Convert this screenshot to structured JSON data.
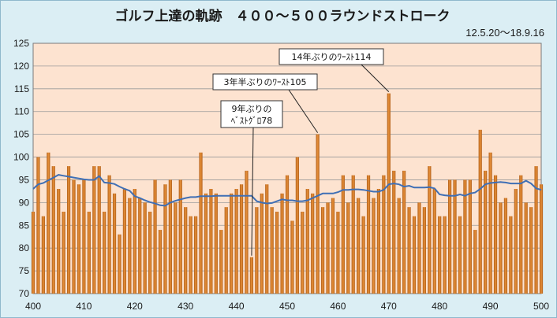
{
  "chart_data": {
    "type": "bar",
    "title": "ゴルフ上達の軌跡　４００～５００ラウンドストローク",
    "subtitle": "12.5.20～18.9.16",
    "x_start": 400,
    "x_ticks": [
      400,
      410,
      420,
      430,
      440,
      450,
      460,
      470,
      480,
      490,
      500
    ],
    "y_ticks": [
      70,
      75,
      80,
      85,
      90,
      95,
      100,
      105,
      110,
      115,
      120,
      125
    ],
    "ylim": [
      70,
      125
    ],
    "xlim": [
      400,
      500
    ],
    "grid": true,
    "colors": {
      "bar": "#e8913a",
      "bar_edge": "#b05e18",
      "line": "#3f6fb5",
      "plot_bg": "#fde3d0",
      "frame_bg": "#dbeef4"
    },
    "series": [
      {
        "type": "bar",
        "values": [
          88,
          100,
          87,
          101,
          98,
          93,
          88,
          98,
          95,
          94,
          95,
          88,
          98,
          98,
          88,
          96,
          92,
          83,
          93,
          91,
          93,
          91,
          90,
          88,
          95,
          84,
          94,
          95,
          90,
          95,
          89,
          87,
          87,
          101,
          92,
          93,
          92,
          84,
          89,
          92,
          93,
          94,
          97,
          78,
          89,
          92,
          94,
          89,
          88,
          92,
          96,
          86,
          100,
          88,
          93,
          92,
          105,
          89,
          90,
          91,
          88,
          96,
          90,
          96,
          91,
          87,
          96,
          91,
          93,
          96,
          114,
          97,
          91,
          97,
          89,
          87,
          90,
          89,
          98,
          93,
          87,
          87,
          95,
          95,
          87,
          95,
          95,
          84,
          106,
          97,
          101,
          96,
          90,
          91,
          87,
          93,
          96,
          90,
          89,
          98,
          94
        ]
      },
      {
        "type": "line",
        "values": [
          93.0,
          94.0,
          94.3,
          94.9,
          95.5,
          96.1,
          95.9,
          95.7,
          95.5,
          95.3,
          95.1,
          95.0,
          95.0,
          95.8,
          94.4,
          94.3,
          94.1,
          93.5,
          93.0,
          92.6,
          91.4,
          91.0,
          90.5,
          90.1,
          89.8,
          89.4,
          89.3,
          90.0,
          90.4,
          90.7,
          91.0,
          91.2,
          91.2,
          91.4,
          91.4,
          91.4,
          91.5,
          91.5,
          91.5,
          91.5,
          91.5,
          91.5,
          91.5,
          91.5,
          90.3,
          90.0,
          89.8,
          89.9,
          90.3,
          90.7,
          90.5,
          90.5,
          90.3,
          90.3,
          90.5,
          91.0,
          91.5,
          92.0,
          92.0,
          92.0,
          92.3,
          92.8,
          92.8,
          92.9,
          92.9,
          92.8,
          92.6,
          92.4,
          92.4,
          92.8,
          94.0,
          94.2,
          94.0,
          93.5,
          93.7,
          93.3,
          93.3,
          93.3,
          93.4,
          93.1,
          91.8,
          91.6,
          91.5,
          91.5,
          91.8,
          91.5,
          92.0,
          92.2,
          93.0,
          94.0,
          94.3,
          94.4,
          94.5,
          94.4,
          94.2,
          94.2,
          94.2,
          94.8,
          94.2,
          93.1,
          92.8
        ]
      }
    ],
    "annotations": [
      {
        "text": "14年ぶりのﾜｰｽﾄ114",
        "x": 470,
        "y": 114
      },
      {
        "text": "3年半ぶりのﾜｰｽﾄ105",
        "x": 456,
        "y": 105
      },
      {
        "line1": "9年ぶりの",
        "line2": "ﾍﾞｽﾄｸﾞﾛ78",
        "x": 443,
        "y": 78
      }
    ]
  }
}
